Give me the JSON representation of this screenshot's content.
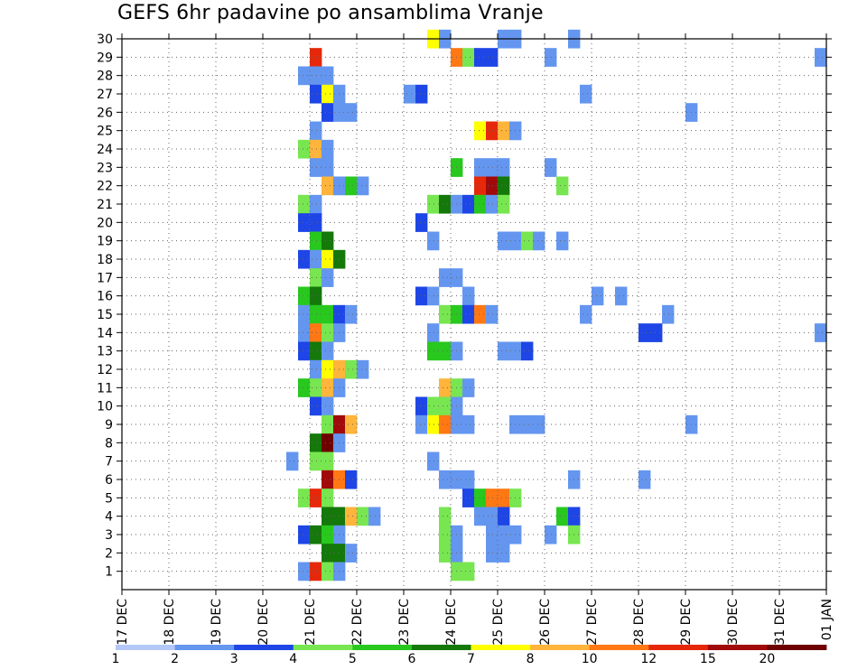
{
  "chart_data": {
    "type": "heatmap",
    "title": "GEFS 6hr padavine po ansamblima Vranje",
    "xlabel": "",
    "ylabel": "",
    "x_tick_labels": [
      "17 DEC",
      "18 DEC",
      "19 DEC",
      "20 DEC",
      "21 DEC",
      "22 DEC",
      "23 DEC",
      "24 DEC",
      "25 DEC",
      "26 DEC",
      "27 DEC",
      "28 DEC",
      "29 DEC",
      "30 DEC",
      "31 DEC",
      "01 JAN"
    ],
    "y_tick_labels": [
      "1",
      "2",
      "3",
      "4",
      "5",
      "6",
      "7",
      "8",
      "9",
      "10",
      "11",
      "12",
      "13",
      "14",
      "15",
      "16",
      "17",
      "18",
      "19",
      "20",
      "21",
      "22",
      "23",
      "24",
      "25",
      "26",
      "27",
      "28",
      "29",
      "30"
    ],
    "x_range_days": [
      0,
      15
    ],
    "y_range_members": [
      0,
      30
    ],
    "time_step_hours": 6,
    "grid": true,
    "legend": {
      "placement": "bottom",
      "labels": [
        "1",
        "2",
        "3",
        "4",
        "5",
        "6",
        "7",
        "8",
        "10",
        "12",
        "15",
        "20"
      ],
      "colors": [
        "#b4c8f8",
        "#6496f0",
        "#1e46e6",
        "#78e650",
        "#28c81e",
        "#14780a",
        "#ffff00",
        "#ffb43c",
        "#ff7814",
        "#e6280a",
        "#a00a0a",
        "#6e0000"
      ]
    },
    "cells": [
      {
        "member": 30,
        "day": 6.5,
        "cls": 6
      },
      {
        "member": 30,
        "day": 6.75,
        "cls": 1
      },
      {
        "member": 30,
        "day": 8.0,
        "cls": 1
      },
      {
        "member": 30,
        "day": 8.25,
        "cls": 1
      },
      {
        "member": 30,
        "day": 9.5,
        "cls": 1
      },
      {
        "member": 29,
        "day": 4.0,
        "cls": 9
      },
      {
        "member": 29,
        "day": 7.0,
        "cls": 8
      },
      {
        "member": 29,
        "day": 7.25,
        "cls": 3
      },
      {
        "member": 29,
        "day": 7.5,
        "cls": 2
      },
      {
        "member": 29,
        "day": 7.75,
        "cls": 2
      },
      {
        "member": 29,
        "day": 9.0,
        "cls": 1
      },
      {
        "member": 29,
        "day": 14.75,
        "cls": 1
      },
      {
        "member": 28,
        "day": 3.75,
        "cls": 1
      },
      {
        "member": 28,
        "day": 4.0,
        "cls": 1
      },
      {
        "member": 28,
        "day": 4.25,
        "cls": 1
      },
      {
        "member": 27,
        "day": 4.0,
        "cls": 2
      },
      {
        "member": 27,
        "day": 4.25,
        "cls": 6
      },
      {
        "member": 27,
        "day": 4.5,
        "cls": 1
      },
      {
        "member": 27,
        "day": 6.0,
        "cls": 1
      },
      {
        "member": 27,
        "day": 6.25,
        "cls": 2
      },
      {
        "member": 27,
        "day": 9.75,
        "cls": 1
      },
      {
        "member": 26,
        "day": 4.25,
        "cls": 2
      },
      {
        "member": 26,
        "day": 4.5,
        "cls": 1
      },
      {
        "member": 26,
        "day": 4.75,
        "cls": 1
      },
      {
        "member": 26,
        "day": 12.0,
        "cls": 1
      },
      {
        "member": 25,
        "day": 4.0,
        "cls": 1
      },
      {
        "member": 25,
        "day": 7.5,
        "cls": 6
      },
      {
        "member": 25,
        "day": 7.75,
        "cls": 9
      },
      {
        "member": 25,
        "day": 8.0,
        "cls": 7
      },
      {
        "member": 25,
        "day": 8.25,
        "cls": 1
      },
      {
        "member": 24,
        "day": 3.75,
        "cls": 3
      },
      {
        "member": 24,
        "day": 4.0,
        "cls": 7
      },
      {
        "member": 24,
        "day": 4.25,
        "cls": 1
      },
      {
        "member": 23,
        "day": 4.0,
        "cls": 1
      },
      {
        "member": 23,
        "day": 4.25,
        "cls": 1
      },
      {
        "member": 23,
        "day": 7.0,
        "cls": 4
      },
      {
        "member": 23,
        "day": 7.5,
        "cls": 1
      },
      {
        "member": 23,
        "day": 7.75,
        "cls": 1
      },
      {
        "member": 23,
        "day": 8.0,
        "cls": 1
      },
      {
        "member": 23,
        "day": 9.0,
        "cls": 1
      },
      {
        "member": 22,
        "day": 4.25,
        "cls": 7
      },
      {
        "member": 22,
        "day": 4.5,
        "cls": 1
      },
      {
        "member": 22,
        "day": 4.75,
        "cls": 4
      },
      {
        "member": 22,
        "day": 5.0,
        "cls": 1
      },
      {
        "member": 22,
        "day": 7.5,
        "cls": 9
      },
      {
        "member": 22,
        "day": 7.75,
        "cls": 10
      },
      {
        "member": 22,
        "day": 8.0,
        "cls": 5
      },
      {
        "member": 22,
        "day": 9.25,
        "cls": 3
      },
      {
        "member": 21,
        "day": 3.75,
        "cls": 3
      },
      {
        "member": 21,
        "day": 4.0,
        "cls": 1
      },
      {
        "member": 21,
        "day": 6.5,
        "cls": 3
      },
      {
        "member": 21,
        "day": 6.75,
        "cls": 5
      },
      {
        "member": 21,
        "day": 7.0,
        "cls": 1
      },
      {
        "member": 21,
        "day": 7.25,
        "cls": 2
      },
      {
        "member": 21,
        "day": 7.5,
        "cls": 4
      },
      {
        "member": 21,
        "day": 7.75,
        "cls": 1
      },
      {
        "member": 21,
        "day": 8.0,
        "cls": 3
      },
      {
        "member": 20,
        "day": 3.75,
        "cls": 2
      },
      {
        "member": 20,
        "day": 4.0,
        "cls": 2
      },
      {
        "member": 20,
        "day": 6.25,
        "cls": 2
      },
      {
        "member": 19,
        "day": 4.0,
        "cls": 4
      },
      {
        "member": 19,
        "day": 4.25,
        "cls": 5
      },
      {
        "member": 19,
        "day": 6.5,
        "cls": 1
      },
      {
        "member": 19,
        "day": 8.0,
        "cls": 1
      },
      {
        "member": 19,
        "day": 8.25,
        "cls": 1
      },
      {
        "member": 19,
        "day": 8.5,
        "cls": 3
      },
      {
        "member": 19,
        "day": 8.75,
        "cls": 1
      },
      {
        "member": 19,
        "day": 9.25,
        "cls": 1
      },
      {
        "member": 18,
        "day": 3.75,
        "cls": 2
      },
      {
        "member": 18,
        "day": 4.0,
        "cls": 1
      },
      {
        "member": 18,
        "day": 4.25,
        "cls": 6
      },
      {
        "member": 18,
        "day": 4.5,
        "cls": 5
      },
      {
        "member": 17,
        "day": 4.0,
        "cls": 3
      },
      {
        "member": 17,
        "day": 4.25,
        "cls": 1
      },
      {
        "member": 17,
        "day": 6.75,
        "cls": 1
      },
      {
        "member": 17,
        "day": 7.0,
        "cls": 1
      },
      {
        "member": 16,
        "day": 3.75,
        "cls": 4
      },
      {
        "member": 16,
        "day": 4.0,
        "cls": 5
      },
      {
        "member": 16,
        "day": 6.25,
        "cls": 2
      },
      {
        "member": 16,
        "day": 6.5,
        "cls": 1
      },
      {
        "member": 16,
        "day": 7.25,
        "cls": 1
      },
      {
        "member": 16,
        "day": 10.0,
        "cls": 1
      },
      {
        "member": 16,
        "day": 10.5,
        "cls": 1
      },
      {
        "member": 15,
        "day": 3.75,
        "cls": 1
      },
      {
        "member": 15,
        "day": 4.0,
        "cls": 4
      },
      {
        "member": 15,
        "day": 4.25,
        "cls": 4
      },
      {
        "member": 15,
        "day": 4.5,
        "cls": 2
      },
      {
        "member": 15,
        "day": 4.75,
        "cls": 1
      },
      {
        "member": 15,
        "day": 6.75,
        "cls": 3
      },
      {
        "member": 15,
        "day": 7.0,
        "cls": 4
      },
      {
        "member": 15,
        "day": 7.25,
        "cls": 2
      },
      {
        "member": 15,
        "day": 7.5,
        "cls": 8
      },
      {
        "member": 15,
        "day": 7.75,
        "cls": 1
      },
      {
        "member": 15,
        "day": 9.75,
        "cls": 1
      },
      {
        "member": 15,
        "day": 11.5,
        "cls": 1
      },
      {
        "member": 14,
        "day": 3.75,
        "cls": 1
      },
      {
        "member": 14,
        "day": 4.0,
        "cls": 8
      },
      {
        "member": 14,
        "day": 4.25,
        "cls": 3
      },
      {
        "member": 14,
        "day": 4.5,
        "cls": 1
      },
      {
        "member": 14,
        "day": 6.5,
        "cls": 1
      },
      {
        "member": 14,
        "day": 11.0,
        "cls": 2
      },
      {
        "member": 14,
        "day": 11.25,
        "cls": 2
      },
      {
        "member": 14,
        "day": 14.75,
        "cls": 1
      },
      {
        "member": 13,
        "day": 3.75,
        "cls": 2
      },
      {
        "member": 13,
        "day": 4.0,
        "cls": 5
      },
      {
        "member": 13,
        "day": 4.25,
        "cls": 1
      },
      {
        "member": 13,
        "day": 6.5,
        "cls": 4
      },
      {
        "member": 13,
        "day": 6.75,
        "cls": 4
      },
      {
        "member": 13,
        "day": 7.0,
        "cls": 1
      },
      {
        "member": 13,
        "day": 8.0,
        "cls": 1
      },
      {
        "member": 13,
        "day": 8.25,
        "cls": 1
      },
      {
        "member": 13,
        "day": 8.5,
        "cls": 2
      },
      {
        "member": 12,
        "day": 4.0,
        "cls": 1
      },
      {
        "member": 12,
        "day": 4.25,
        "cls": 6
      },
      {
        "member": 12,
        "day": 4.5,
        "cls": 7
      },
      {
        "member": 12,
        "day": 4.75,
        "cls": 3
      },
      {
        "member": 12,
        "day": 5.0,
        "cls": 1
      },
      {
        "member": 11,
        "day": 3.75,
        "cls": 4
      },
      {
        "member": 11,
        "day": 4.0,
        "cls": 3
      },
      {
        "member": 11,
        "day": 4.25,
        "cls": 7
      },
      {
        "member": 11,
        "day": 4.5,
        "cls": 1
      },
      {
        "member": 11,
        "day": 6.75,
        "cls": 7
      },
      {
        "member": 11,
        "day": 7.0,
        "cls": 3
      },
      {
        "member": 11,
        "day": 7.25,
        "cls": 1
      },
      {
        "member": 10,
        "day": 4.0,
        "cls": 2
      },
      {
        "member": 10,
        "day": 4.25,
        "cls": 1
      },
      {
        "member": 10,
        "day": 6.25,
        "cls": 2
      },
      {
        "member": 10,
        "day": 6.5,
        "cls": 3
      },
      {
        "member": 10,
        "day": 6.75,
        "cls": 3
      },
      {
        "member": 10,
        "day": 7.0,
        "cls": 1
      },
      {
        "member": 9,
        "day": 4.25,
        "cls": 3
      },
      {
        "member": 9,
        "day": 4.5,
        "cls": 10
      },
      {
        "member": 9,
        "day": 4.75,
        "cls": 7
      },
      {
        "member": 9,
        "day": 6.25,
        "cls": 1
      },
      {
        "member": 9,
        "day": 6.5,
        "cls": 6
      },
      {
        "member": 9,
        "day": 6.75,
        "cls": 8
      },
      {
        "member": 9,
        "day": 7.0,
        "cls": 1
      },
      {
        "member": 9,
        "day": 7.25,
        "cls": 1
      },
      {
        "member": 9,
        "day": 8.25,
        "cls": 1
      },
      {
        "member": 9,
        "day": 8.5,
        "cls": 1
      },
      {
        "member": 9,
        "day": 8.75,
        "cls": 1
      },
      {
        "member": 9,
        "day": 12.0,
        "cls": 1
      },
      {
        "member": 8,
        "day": 4.0,
        "cls": 5
      },
      {
        "member": 8,
        "day": 4.25,
        "cls": 11
      },
      {
        "member": 8,
        "day": 4.5,
        "cls": 1
      },
      {
        "member": 7,
        "day": 3.5,
        "cls": 1
      },
      {
        "member": 7,
        "day": 4.0,
        "cls": 3
      },
      {
        "member": 7,
        "day": 4.25,
        "cls": 3
      },
      {
        "member": 7,
        "day": 6.5,
        "cls": 1
      },
      {
        "member": 6,
        "day": 4.25,
        "cls": 10
      },
      {
        "member": 6,
        "day": 4.5,
        "cls": 8
      },
      {
        "member": 6,
        "day": 4.75,
        "cls": 2
      },
      {
        "member": 6,
        "day": 6.75,
        "cls": 1
      },
      {
        "member": 6,
        "day": 7.0,
        "cls": 1
      },
      {
        "member": 6,
        "day": 7.25,
        "cls": 1
      },
      {
        "member": 6,
        "day": 9.5,
        "cls": 1
      },
      {
        "member": 6,
        "day": 11.0,
        "cls": 1
      },
      {
        "member": 5,
        "day": 3.75,
        "cls": 3
      },
      {
        "member": 5,
        "day": 4.0,
        "cls": 9
      },
      {
        "member": 5,
        "day": 4.25,
        "cls": 3
      },
      {
        "member": 5,
        "day": 7.25,
        "cls": 2
      },
      {
        "member": 5,
        "day": 7.5,
        "cls": 4
      },
      {
        "member": 5,
        "day": 7.75,
        "cls": 8
      },
      {
        "member": 5,
        "day": 8.0,
        "cls": 8
      },
      {
        "member": 5,
        "day": 8.25,
        "cls": 3
      },
      {
        "member": 4,
        "day": 4.25,
        "cls": 5
      },
      {
        "member": 4,
        "day": 4.5,
        "cls": 5
      },
      {
        "member": 4,
        "day": 4.75,
        "cls": 7
      },
      {
        "member": 4,
        "day": 5.0,
        "cls": 3
      },
      {
        "member": 4,
        "day": 5.25,
        "cls": 1
      },
      {
        "member": 4,
        "day": 6.75,
        "cls": 3
      },
      {
        "member": 4,
        "day": 7.5,
        "cls": 1
      },
      {
        "member": 4,
        "day": 7.75,
        "cls": 1
      },
      {
        "member": 4,
        "day": 8.0,
        "cls": 2
      },
      {
        "member": 4,
        "day": 9.25,
        "cls": 4
      },
      {
        "member": 4,
        "day": 9.5,
        "cls": 2
      },
      {
        "member": 3,
        "day": 3.75,
        "cls": 2
      },
      {
        "member": 3,
        "day": 4.0,
        "cls": 5
      },
      {
        "member": 3,
        "day": 4.25,
        "cls": 4
      },
      {
        "member": 3,
        "day": 4.5,
        "cls": 1
      },
      {
        "member": 3,
        "day": 6.75,
        "cls": 3
      },
      {
        "member": 3,
        "day": 7.0,
        "cls": 1
      },
      {
        "member": 3,
        "day": 7.75,
        "cls": 1
      },
      {
        "member": 3,
        "day": 8.0,
        "cls": 1
      },
      {
        "member": 3,
        "day": 8.25,
        "cls": 1
      },
      {
        "member": 3,
        "day": 9.0,
        "cls": 1
      },
      {
        "member": 3,
        "day": 9.5,
        "cls": 3
      },
      {
        "member": 2,
        "day": 4.25,
        "cls": 5
      },
      {
        "member": 2,
        "day": 4.5,
        "cls": 5
      },
      {
        "member": 2,
        "day": 4.75,
        "cls": 1
      },
      {
        "member": 2,
        "day": 6.75,
        "cls": 3
      },
      {
        "member": 2,
        "day": 7.0,
        "cls": 1
      },
      {
        "member": 2,
        "day": 7.75,
        "cls": 1
      },
      {
        "member": 2,
        "day": 8.0,
        "cls": 1
      },
      {
        "member": 1,
        "day": 3.75,
        "cls": 1
      },
      {
        "member": 1,
        "day": 4.0,
        "cls": 9
      },
      {
        "member": 1,
        "day": 4.25,
        "cls": 3
      },
      {
        "member": 1,
        "day": 4.5,
        "cls": 1
      },
      {
        "member": 1,
        "day": 7.0,
        "cls": 3
      },
      {
        "member": 1,
        "day": 7.25,
        "cls": 3
      }
    ]
  }
}
